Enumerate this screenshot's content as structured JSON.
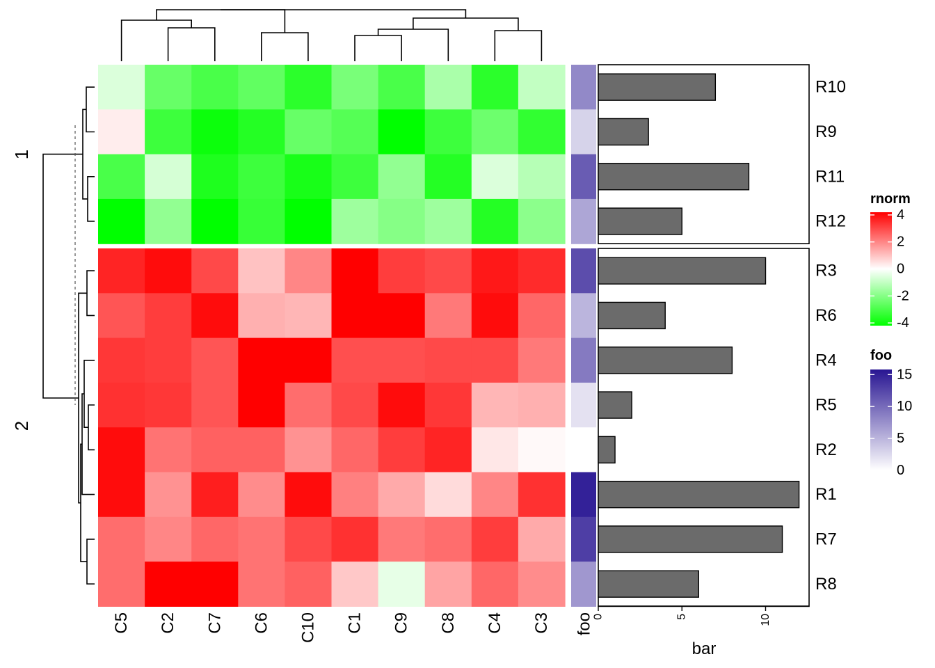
{
  "chart_data": {
    "type": "heatmap",
    "columns": [
      "C5",
      "C2",
      "C7",
      "C6",
      "C10",
      "C1",
      "C9",
      "C8",
      "C4",
      "C3"
    ],
    "row_splits": [
      {
        "label": "1",
        "rows": [
          "R10",
          "R9",
          "R11",
          "R12"
        ]
      },
      {
        "label": "2",
        "rows": [
          "R3",
          "R6",
          "R4",
          "R5",
          "R2",
          "R1",
          "R7",
          "R8"
        ]
      }
    ],
    "matrix": [
      [
        -0.6,
        -2.5,
        -3.0,
        -2.6,
        -3.5,
        -2.2,
        -3.0,
        -1.4,
        -3.5,
        -1.0
      ],
      [
        0.3,
        -3.2,
        -4.0,
        -3.6,
        -2.5,
        -2.8,
        -4.2,
        -3.2,
        -2.4,
        -3.4
      ],
      [
        -3.0,
        -0.7,
        -3.7,
        -3.2,
        -3.8,
        -3.2,
        -1.8,
        -3.6,
        -0.6,
        -1.2
      ],
      [
        -4.2,
        -1.8,
        -4.2,
        -3.3,
        -4.2,
        -1.6,
        -2.0,
        -1.6,
        -3.6,
        -1.9
      ],
      [
        3.6,
        4.0,
        3.0,
        1.0,
        2.0,
        4.2,
        3.2,
        3.0,
        3.8,
        3.5
      ],
      [
        2.8,
        3.2,
        4.0,
        1.3,
        1.2,
        4.2,
        4.2,
        2.2,
        4.0,
        2.5
      ],
      [
        3.3,
        3.2,
        2.8,
        4.2,
        4.2,
        2.9,
        2.9,
        3.0,
        3.0,
        2.2
      ],
      [
        3.4,
        3.3,
        2.8,
        4.2,
        2.4,
        3.0,
        4.0,
        3.3,
        1.2,
        1.3
      ],
      [
        4.0,
        2.3,
        2.6,
        2.6,
        1.8,
        2.5,
        3.2,
        3.6,
        0.4,
        0.1
      ],
      [
        4.0,
        1.8,
        3.7,
        1.9,
        4.0,
        2.1,
        1.4,
        0.6,
        2.0,
        3.4
      ],
      [
        2.4,
        2.0,
        2.5,
        2.3,
        3.0,
        3.4,
        2.2,
        2.4,
        3.2,
        1.4
      ],
      [
        2.4,
        4.2,
        4.2,
        2.3,
        2.6,
        0.9,
        -0.4,
        1.5,
        2.5,
        1.9
      ]
    ],
    "foo": [
      {
        "row": "R10",
        "value": 8
      },
      {
        "row": "R9",
        "value": 3
      },
      {
        "row": "R11",
        "value": 11
      },
      {
        "row": "R12",
        "value": 6
      },
      {
        "row": "R3",
        "value": 12
      },
      {
        "row": "R6",
        "value": 5
      },
      {
        "row": "R4",
        "value": 9
      },
      {
        "row": "R5",
        "value": 2
      },
      {
        "row": "R2",
        "value": 0
      },
      {
        "row": "R1",
        "value": 15
      },
      {
        "row": "R7",
        "value": 13
      },
      {
        "row": "R8",
        "value": 7
      }
    ],
    "bar": [
      {
        "row": "R10",
        "value": 7
      },
      {
        "row": "R9",
        "value": 3
      },
      {
        "row": "R11",
        "value": 9
      },
      {
        "row": "R12",
        "value": 5
      },
      {
        "row": "R3",
        "value": 10
      },
      {
        "row": "R6",
        "value": 4
      },
      {
        "row": "R4",
        "value": 8
      },
      {
        "row": "R5",
        "value": 2
      },
      {
        "row": "R2",
        "value": 1
      },
      {
        "row": "R1",
        "value": 12
      },
      {
        "row": "R7",
        "value": 11
      },
      {
        "row": "R8",
        "value": 6
      }
    ],
    "bar_axis": {
      "title": "bar",
      "ticks": [
        0,
        5,
        10
      ],
      "xlim": [
        0,
        12.6
      ]
    },
    "foo_label": "foo",
    "bar_color": "#6b6b6b",
    "legends": [
      {
        "title": "rnorm",
        "ticks": [
          4,
          2,
          0,
          -2,
          -4
        ],
        "range": [
          -4.2,
          4.2
        ],
        "colors": [
          "#00ff00",
          "#ffffff",
          "#ff0000"
        ]
      },
      {
        "title": "foo",
        "ticks": [
          15,
          10,
          5,
          0
        ],
        "range": [
          0,
          15.8
        ],
        "colors": [
          "#ffffff",
          "#281592"
        ]
      }
    ]
  }
}
